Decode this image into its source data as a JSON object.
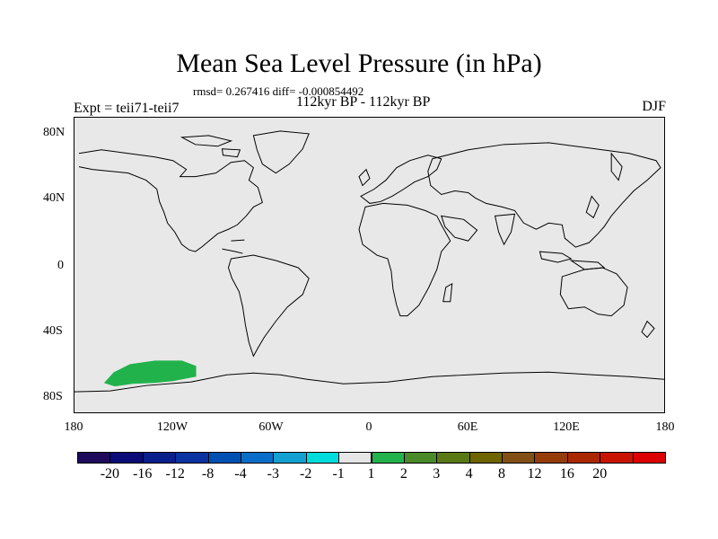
{
  "title": "Mean Sea Level Pressure (in hPa)",
  "stats": "rmsd= 0.267416 diff= -0.000854492",
  "period": "112kyr BP - 112kyr BP",
  "experiment": "Expt = teii71-teii7",
  "season": "DJF",
  "map": {
    "background_color": "#e8e8e8",
    "lat_labels": [
      "80N",
      "40N",
      "0",
      "40S",
      "80S"
    ],
    "lon_labels": [
      "180",
      "120W",
      "60W",
      "0",
      "60E",
      "120E",
      "180"
    ],
    "anomaly_regions": [
      {
        "location": "South Pacific, off Antarctica",
        "lon_range": [
          -163,
          -103
        ],
        "lat_range": [
          -72,
          -58
        ],
        "value_bin": "1 to 2",
        "color": "#22b24c"
      }
    ]
  },
  "colorbar": {
    "colors": [
      "#1e0a5a",
      "#0a0a78",
      "#0a1e8c",
      "#0a32a0",
      "#0050b4",
      "#0a6ec8",
      "#14a0d2",
      "#00dcdc",
      "#e6e6e6",
      "#22b24c",
      "#4a8a28",
      "#5a7814",
      "#6e6400",
      "#825014",
      "#963c0a",
      "#aa2800",
      "#c81400",
      "#dc0000"
    ],
    "labels": [
      "-20",
      "-16",
      "-12",
      "-8",
      "-4",
      "-3",
      "-2",
      "-1",
      "1",
      "2",
      "3",
      "4",
      "8",
      "12",
      "16",
      "20"
    ]
  }
}
